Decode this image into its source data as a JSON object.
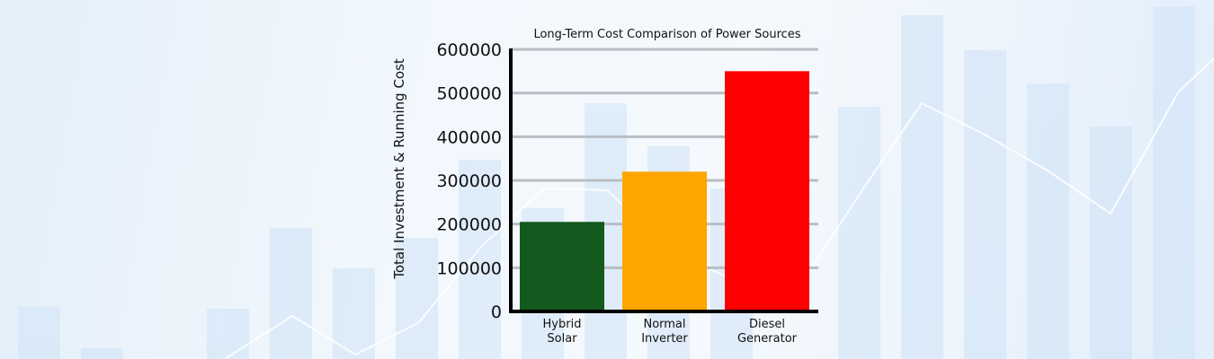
{
  "chart_data": {
    "type": "bar",
    "title": "Long-Term Cost Comparison of Power Sources",
    "xlabel": "",
    "ylabel": "Total Investment & Running Cost",
    "categories": [
      [
        "Hybrid",
        "Solar"
      ],
      [
        "Normal",
        "Inverter"
      ],
      [
        "Diesel",
        "Generator"
      ]
    ],
    "values": [
      205000,
      320000,
      550000
    ],
    "colors": [
      "#14591d",
      "#ffa500",
      "#ff0000"
    ],
    "ylim": [
      0,
      600000
    ],
    "yticks": [
      "0",
      "100000",
      "200000",
      "300000",
      "400000",
      "500000",
      "600000"
    ],
    "grid": true,
    "legend": "none"
  }
}
